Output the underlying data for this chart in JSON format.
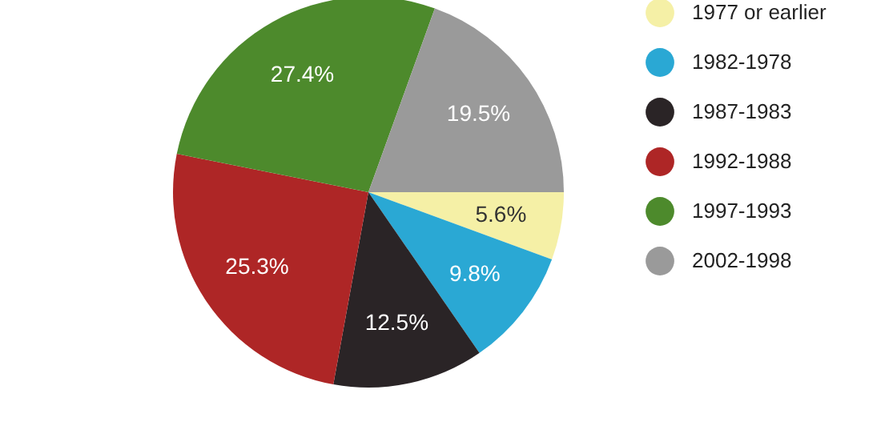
{
  "chart_data": {
    "type": "pie",
    "categories": [
      "1977 or earlier",
      "1982-1978",
      "1987-1983",
      "1992-1988",
      "1997-1993",
      "2002-1998"
    ],
    "values": [
      5.6,
      9.8,
      12.5,
      25.3,
      27.4,
      19.5
    ],
    "value_labels": [
      "5.6%",
      "9.8%",
      "12.5%",
      "25.3%",
      "27.4%",
      "19.5%"
    ],
    "colors": [
      "#f5f0a6",
      "#2aa8d4",
      "#2a2426",
      "#ae2626",
      "#4d8a2c",
      "#9a9a9a"
    ],
    "legend": "right"
  }
}
